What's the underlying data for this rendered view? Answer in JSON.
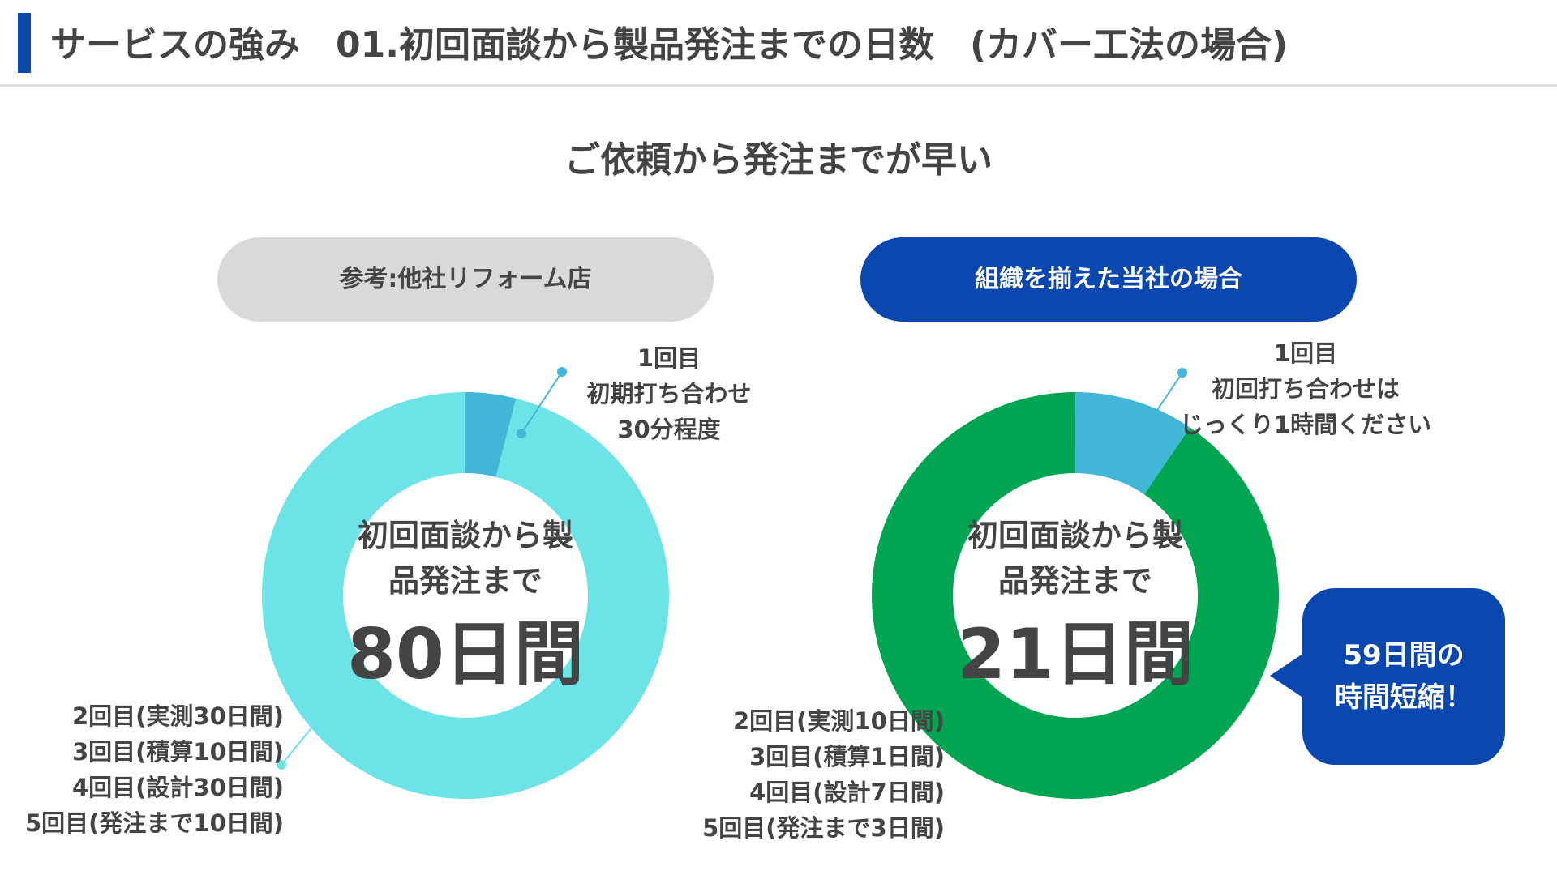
{
  "header": {
    "title": "サービスの強み　01.初回面談から製品発注までの日数　(カバー工法の場合)",
    "subtitle": "ご依頼から発注までが早い"
  },
  "colors": {
    "brand_blue": "#0a47ae",
    "left_main": "#6be3e7",
    "left_first": "#41b6d6",
    "right_main": "#00a551",
    "right_first": "#41b6d6",
    "pill_gray": "#d9d9d9"
  },
  "chart_data": [
    {
      "type": "pie",
      "variant": "donut",
      "title": "参考:他社リフォーム店",
      "center_label": "初回面談から製品発注まで",
      "center_value": "80日間",
      "slices": [
        {
          "label": "1回目 初期打ち合わせ 30分程度",
          "value": 3.2,
          "color": "#41b6d6"
        },
        {
          "label": "2回目〜5回目",
          "value": 76.8,
          "color": "#6be3e7"
        }
      ],
      "annotations": {
        "first": [
          "1回目",
          "初期打ち合わせ",
          "30分程度"
        ],
        "rest": [
          "2回目(実測30日間)",
          "3回目(積算10日間)",
          "4回目(設計30日間)",
          "5回目(発注まで10日間)"
        ]
      }
    },
    {
      "type": "pie",
      "variant": "donut",
      "title": "組織を揃えた当社の場合",
      "center_label": "初回面談から製品発注まで",
      "center_value": "21日間",
      "slices": [
        {
          "label": "1回目 初回打ち合わせはじっくり1時間ください",
          "value": 2.0,
          "color": "#41b6d6"
        },
        {
          "label": "2回目〜5回目",
          "value": 19.0,
          "color": "#00a551"
        }
      ],
      "annotations": {
        "first": [
          "1回目",
          "初回打ち合わせは",
          "じっくり1時間ください"
        ],
        "rest": [
          "2回目(実測10日間)",
          "3回目(積算1日間)",
          "4回目(設計7日間)",
          "5回目(発注まで3日間)"
        ]
      }
    }
  ],
  "left": {
    "pill": "参考:他社リフォーム店",
    "center_lines": [
      "初回面談から製",
      "品発注まで"
    ],
    "center_big": "80日間",
    "first": [
      "1回目",
      "初期打ち合わせ",
      "30分程度"
    ],
    "rest": [
      "2回目(実測30日間)",
      "3回目(積算10日間)",
      "4回目(設計30日間)",
      "5回目(発注まで10日間)"
    ]
  },
  "right": {
    "pill": "組織を揃えた当社の場合",
    "center_lines": [
      "初回面談から製",
      "品発注まで"
    ],
    "center_big": "21日間",
    "first": [
      "1回目",
      "初回打ち合わせは",
      "じっくり1時間ください"
    ],
    "rest": [
      "2回目(実測10日間)",
      "3回目(積算1日間)",
      "4回目(設計7日間)",
      "5回目(発注まで3日間)"
    ]
  },
  "bubble": {
    "line1": "59日間の",
    "line2": "時間短縮！"
  }
}
